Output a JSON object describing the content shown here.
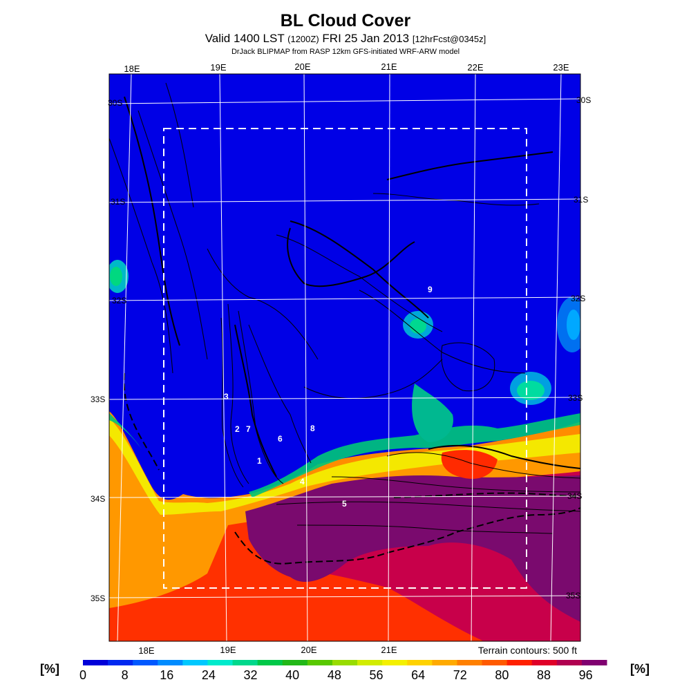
{
  "header": {
    "title": "BL Cloud Cover",
    "valid_prefix": "Valid 1400 LST",
    "valid_utc": "(1200Z)",
    "valid_date": "FRI 25 Jan 2013",
    "forecast": "[12hrFcst@0345z]",
    "credit": "DrJack BLIPMAP from RASP 12km GFS-initiated WRF-ARW model"
  },
  "map": {
    "lon_labels_top": [
      "18E",
      "19E",
      "20E",
      "21E",
      "22E",
      "23E"
    ],
    "lon_labels_bottom": [
      "18E",
      "19E",
      "20E",
      "21E"
    ],
    "lat_labels": [
      "30S",
      "31S",
      "32S",
      "33S",
      "34S",
      "35S"
    ],
    "point_labels": [
      "9",
      "3",
      "2",
      "7",
      "6",
      "8",
      "1",
      "4",
      "5"
    ],
    "terrain_note": "Terrain contours: 500 ft"
  },
  "colorbar": {
    "unit": "[%]",
    "ticks": [
      "0",
      "8",
      "16",
      "24",
      "32",
      "40",
      "48",
      "56",
      "64",
      "72",
      "80",
      "88",
      "96"
    ],
    "colors": [
      "#0000d9",
      "#0028f0",
      "#0058ff",
      "#008cff",
      "#00c8ff",
      "#00eacc",
      "#00d88c",
      "#00c848",
      "#22b818",
      "#58c800",
      "#98dc00",
      "#d2ec00",
      "#f4f000",
      "#ffd200",
      "#ffaa00",
      "#ff8000",
      "#ff5a00",
      "#ff2000",
      "#e00028",
      "#b00050",
      "#800070"
    ]
  }
}
